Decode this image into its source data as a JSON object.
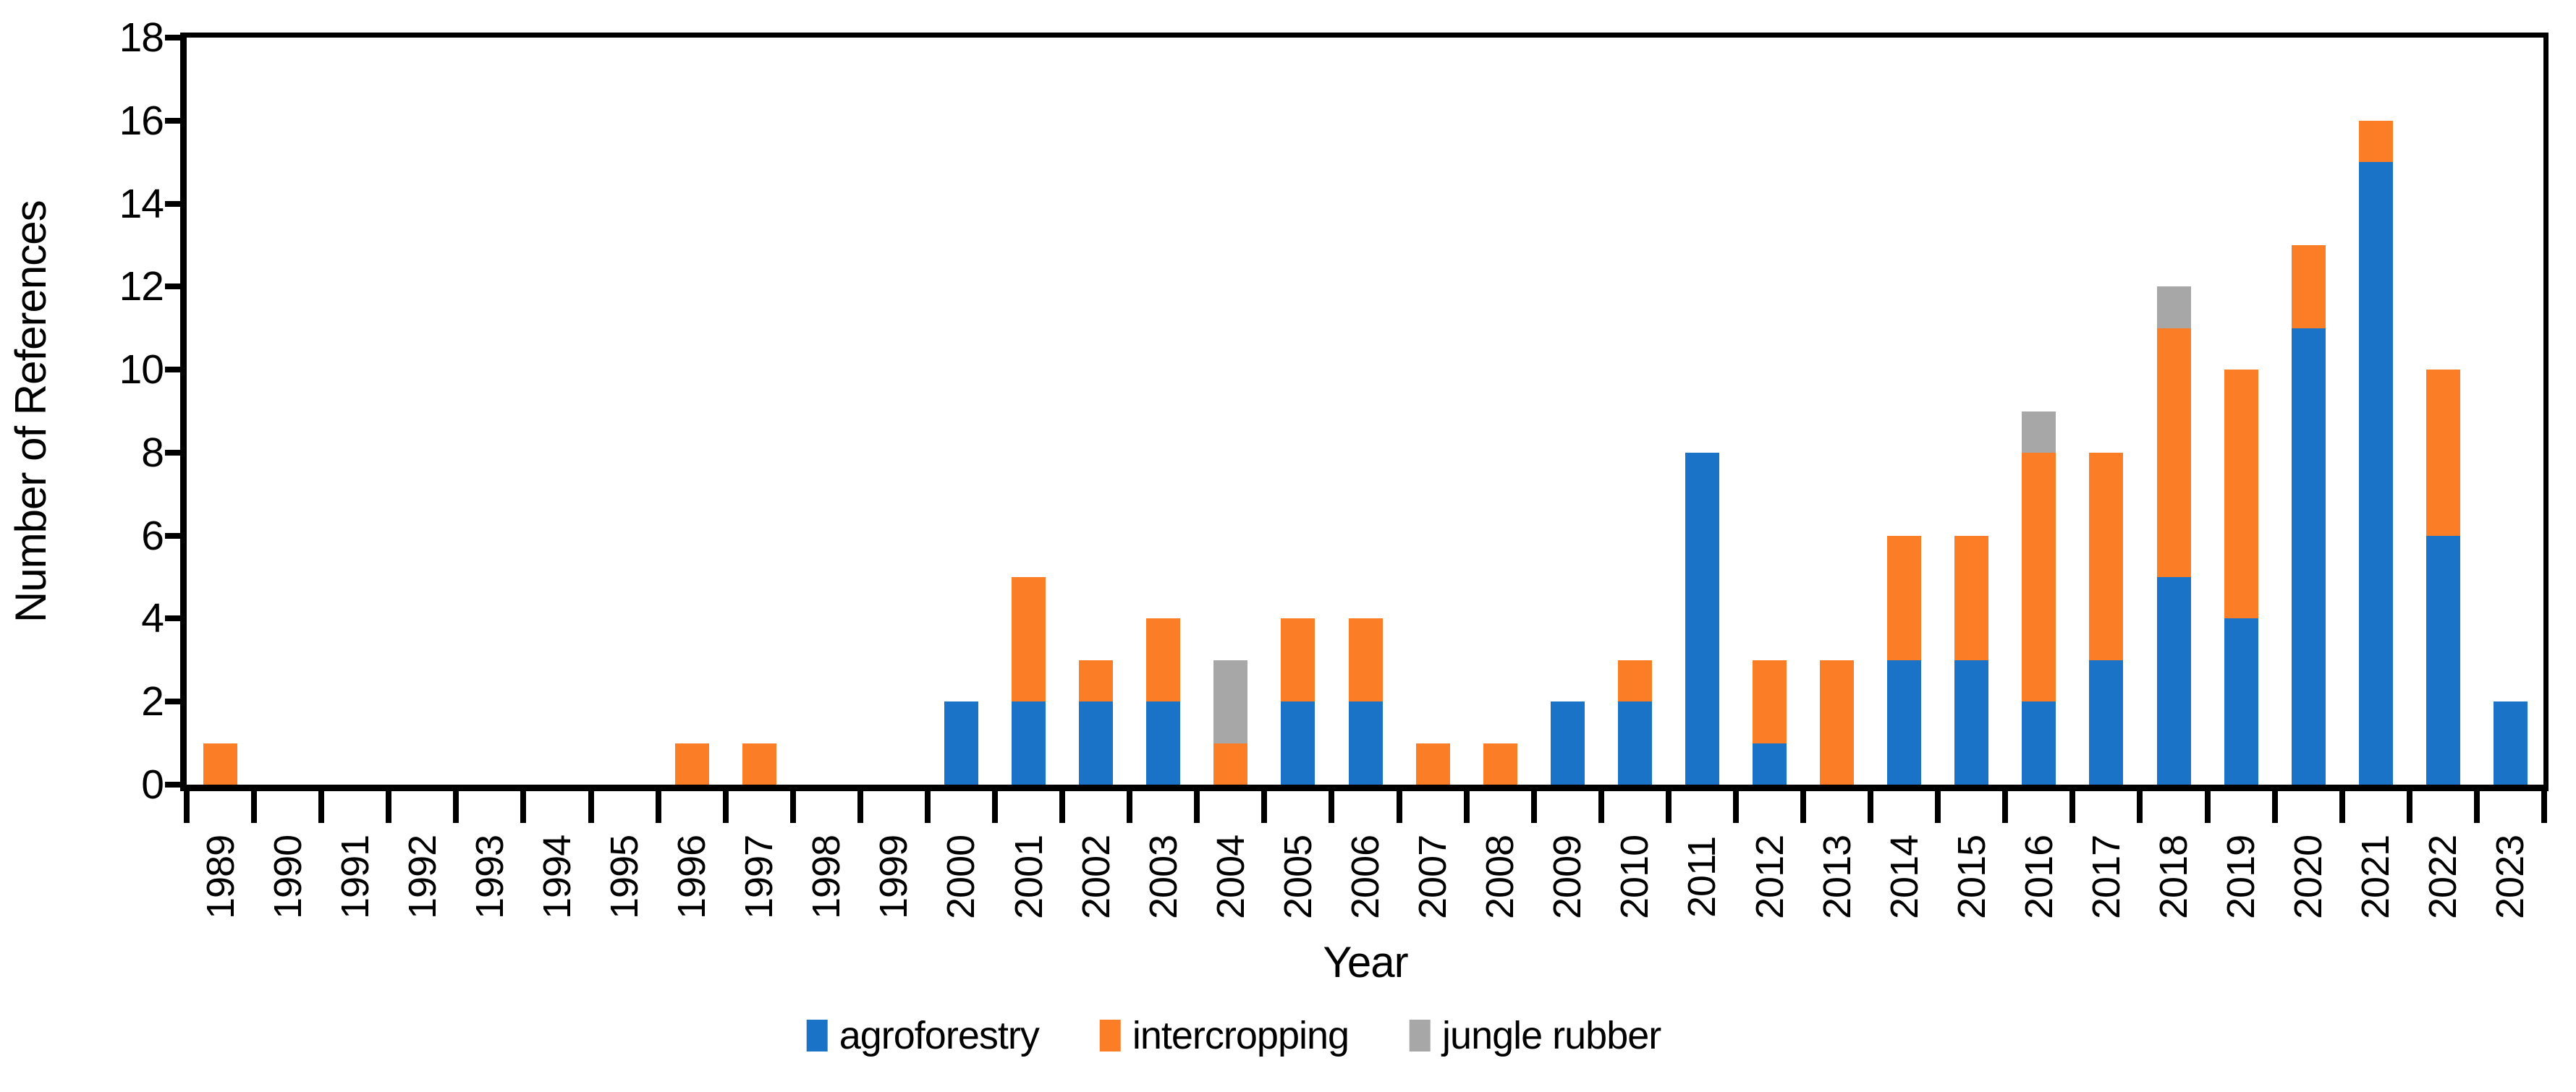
{
  "chart_data": {
    "type": "bar",
    "stacked": true,
    "title": "",
    "xlabel": "Year",
    "ylabel": "Number of References",
    "ylim": [
      0,
      18
    ],
    "yticks": [
      0,
      2,
      4,
      6,
      8,
      10,
      12,
      14,
      16,
      18
    ],
    "grid": false,
    "legend_position": "bottom",
    "categories": [
      "1989",
      "1990",
      "1991",
      "1992",
      "1993",
      "1994",
      "1995",
      "1996",
      "1997",
      "1998",
      "1999",
      "2000",
      "2001",
      "2002",
      "2003",
      "2004",
      "2005",
      "2006",
      "2007",
      "2008",
      "2009",
      "2010",
      "2011",
      "2012",
      "2013",
      "2014",
      "2015",
      "2016",
      "2017",
      "2018",
      "2019",
      "2020",
      "2021",
      "2022",
      "2023"
    ],
    "series": [
      {
        "name": "agroforestry",
        "color": "#1B73C8",
        "values": [
          0,
          0,
          0,
          0,
          0,
          0,
          0,
          0,
          0,
          0,
          0,
          2,
          2,
          2,
          2,
          0,
          2,
          2,
          0,
          0,
          2,
          2,
          8,
          1,
          0,
          3,
          3,
          2,
          3,
          5,
          4,
          11,
          15,
          6,
          2
        ]
      },
      {
        "name": "intercropping",
        "color": "#FB7D26",
        "values": [
          1,
          0,
          0,
          0,
          0,
          0,
          0,
          1,
          1,
          0,
          0,
          0,
          3,
          1,
          2,
          1,
          2,
          2,
          1,
          1,
          0,
          1,
          0,
          2,
          3,
          3,
          3,
          6,
          5,
          6,
          6,
          2,
          1,
          4,
          0
        ]
      },
      {
        "name": "jungle rubber",
        "color": "#A7A7A7",
        "values": [
          0,
          0,
          0,
          0,
          0,
          0,
          0,
          0,
          0,
          0,
          0,
          0,
          0,
          0,
          0,
          2,
          0,
          0,
          0,
          0,
          0,
          0,
          0,
          0,
          0,
          0,
          0,
          1,
          0,
          1,
          0,
          0,
          0,
          0,
          0
        ]
      }
    ],
    "totals": [
      1,
      0,
      0,
      0,
      0,
      0,
      0,
      1,
      1,
      0,
      0,
      2,
      5,
      3,
      4,
      3,
      4,
      4,
      1,
      1,
      2,
      3,
      8,
      3,
      3,
      6,
      6,
      9,
      8,
      12,
      10,
      13,
      16,
      10,
      2
    ]
  },
  "axis_colors": {
    "spine": "#000000",
    "text": "#000000"
  }
}
